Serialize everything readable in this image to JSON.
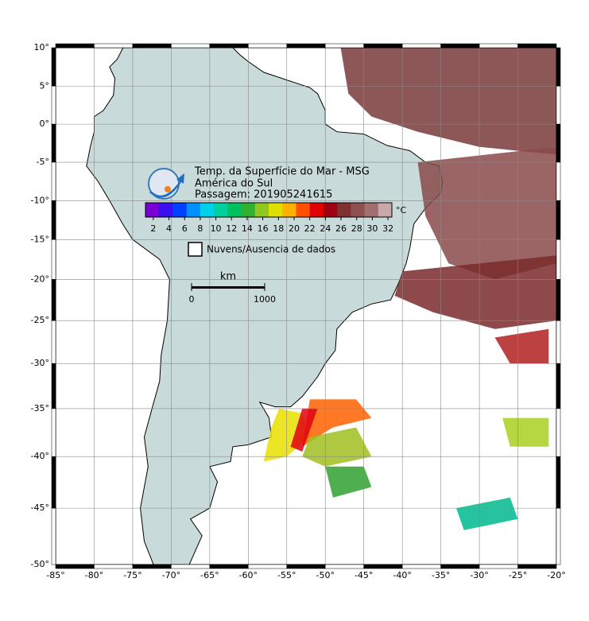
{
  "header": {
    "title": "Temp. da Superfície do Mar - MSG",
    "subtitle": "América do Sul",
    "pass": "Passagem: 201905241615"
  },
  "colorbar": {
    "unit": "°C",
    "range": [
      1,
      32.5
    ],
    "ticks": [
      2,
      4,
      6,
      8,
      10,
      12,
      14,
      16,
      18,
      20,
      22,
      24,
      26,
      28,
      30,
      32
    ],
    "colors": [
      "#7a00d6",
      "#3a10f0",
      "#0040ff",
      "#0090ff",
      "#00d0e8",
      "#00d0a0",
      "#00c060",
      "#30b030",
      "#90c820",
      "#e0e000",
      "#ffb000",
      "#ff5000",
      "#e00000",
      "#a00010",
      "#803030",
      "#905050",
      "#a07070",
      "#c8a8a8"
    ]
  },
  "legend": {
    "no_data": "Nuvens/Ausencia de dados"
  },
  "scale_bar": {
    "unit": "km",
    "ticks": [
      0,
      1000
    ]
  },
  "axes": {
    "xlim": [
      -85,
      -20
    ],
    "ylim": [
      -50,
      10
    ],
    "lon_ticks": [
      {
        "value": -85,
        "label": "-85°"
      },
      {
        "value": -80,
        "label": "-80°"
      },
      {
        "value": -75,
        "label": "-75°"
      },
      {
        "value": -70,
        "label": "-70°"
      },
      {
        "value": -65,
        "label": "-65°"
      },
      {
        "value": -60,
        "label": "-60°"
      },
      {
        "value": -55,
        "label": "-55°"
      },
      {
        "value": -50,
        "label": "-50°"
      },
      {
        "value": -45,
        "label": "-45°"
      },
      {
        "value": -40,
        "label": "-40°"
      },
      {
        "value": -35,
        "label": "-35°"
      },
      {
        "value": -30,
        "label": "-30°"
      },
      {
        "value": -25,
        "label": "-25°"
      },
      {
        "value": -20,
        "label": "-20°"
      }
    ],
    "lat_ticks": [
      {
        "value": 10,
        "label": "10°"
      },
      {
        "value": 5,
        "label": "5°"
      },
      {
        "value": 0,
        "label": "0°"
      },
      {
        "value": -5,
        "label": "-5°"
      },
      {
        "value": -10,
        "label": "-10°"
      },
      {
        "value": -15,
        "label": "-15°"
      },
      {
        "value": -20,
        "label": "-20°"
      },
      {
        "value": -25,
        "label": "-25°"
      },
      {
        "value": -30,
        "label": "-30°"
      },
      {
        "value": -35,
        "label": "-35°"
      },
      {
        "value": -40,
        "label": "-40°"
      },
      {
        "value": -45,
        "label": "-45°"
      },
      {
        "value": -50,
        "label": "-50°"
      }
    ]
  }
}
